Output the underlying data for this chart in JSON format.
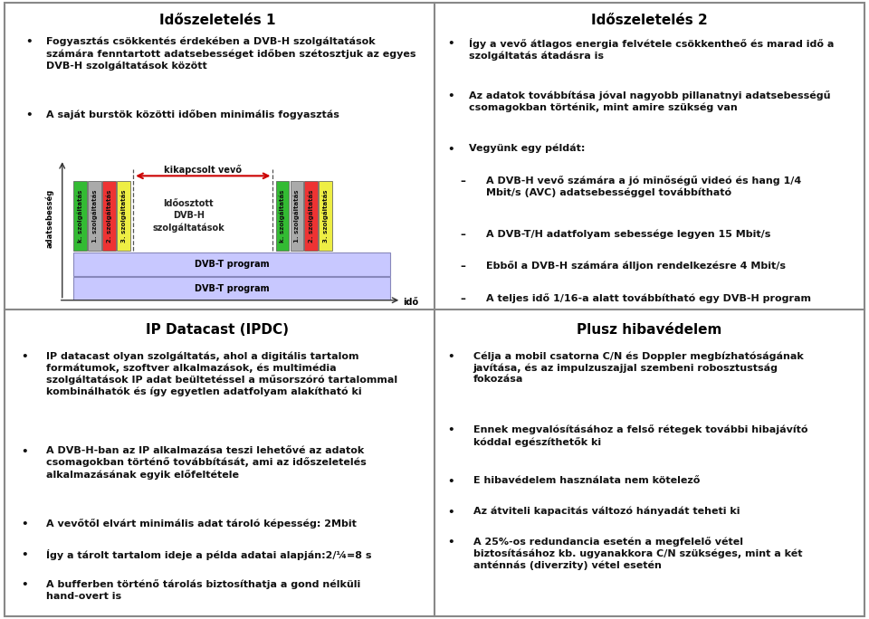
{
  "bg_color": "#ffffff",
  "title1": "Időszeletelés 1",
  "title2": "Időszeletelés 2",
  "title3": "IP Datacast (IPDC)",
  "title4": "Plusz hibavédelem",
  "s1b1": "Fogyasztás csökkentés érdekében a DVB-H szolgáltatások\nszámára fenntartott adatsebességet időben szétosztjuk az egyes\nDVB-H szolgáltatások között",
  "s1b2": "A saját burstök közötti időben minimális fogyasztás",
  "s2b1": "Így a vevő átlagos energia felvétele csökkentheő és marad idő a\nszolgáltatás átadásra is",
  "s2b2": "Az adatok továbbítása jóval nagyobb pillanatnyi adatsebességű\ncsomagokban történik, mint amire szükség van",
  "s2b3": "Vegyünk egy példát:",
  "s2sub1": "A DVB-H vevő számára a jó minőségű videó és hang 1/4\nMbit/s (AVC) adatsebességgel továbbítható",
  "s2sub2": "A DVB-T/H adatfolyam sebessége legyen 15 Mbit/s",
  "s2sub3": "Ebből a DVB-H számára álljon rendelkezésre 4 Mbit/s",
  "s2sub4": "A teljes idő 1/16-a alatt továbbítható egy DVB-H program",
  "s3b1": "IP datacast olyan szolgáltatás, ahol a digitális tartalom\nformátumok, szoftver alkalmazások, és multimédia\nszolgáltatások IP adat beültetéssel a műsorszóró tartalommal\nkombinálhatók és így egyetlen adatfolyam alakítható ki",
  "s3b2": "A DVB-H-ban az IP alkalmazása teszi lehetővé az adatok\ncsomagokban történő továbbítását, ami az időszeletelés\nalkalmazásának egyik előfeltétele",
  "s3b3": "A vevőtől elvárt minimális adat tároló képesség: 2Mbit",
  "s3b4": "Így a tárolt tartalom ideje a példa adatai alapján:2/¼=8 s",
  "s3b5": "A bufferben történő tárolás biztosíthatja a gond nélküli\nhand-overt is",
  "s4b1": "Célja a mobil csatorna C/N és Doppler megbízhatóságának\njavítása, és az impulzuszajjal szembeni robosztustság\nfokozása",
  "s4b2": "Ennek megvalósításához a felső rétegek további hibajávító\nkóddal egészíthetők ki",
  "s4b3": "E hibavédelem használata nem kötelező",
  "s4b4": "Az átviteli kapacitás változó hányadát teheti ki",
  "s4b5": "A 25%-os redundancia esetén a megfelelő vétel\nbiztosításához kb. ugyanakkora C/N szükséges, mint a két\nanténnás (diverzity) vétel esetén",
  "bar_colors": [
    "#33bb33",
    "#aaaaaa",
    "#ee3333",
    "#eeee44"
  ],
  "dvbt_color": "#c8c8ff",
  "arrow_color": "#cc0000",
  "kikapcsolt": "kikapcsolt vevő",
  "idoosztott": "Időosztott\nDVB-H\nszolgáltatások",
  "dvbt_label": "DVB-T program",
  "ido_label": "idő",
  "adatseb_label": "adatsebesség",
  "svc_labels": [
    "k. szolgáltatás",
    "1. szolgáltatás",
    "2. szolgáltatás",
    "3. szolgáltatás"
  ]
}
